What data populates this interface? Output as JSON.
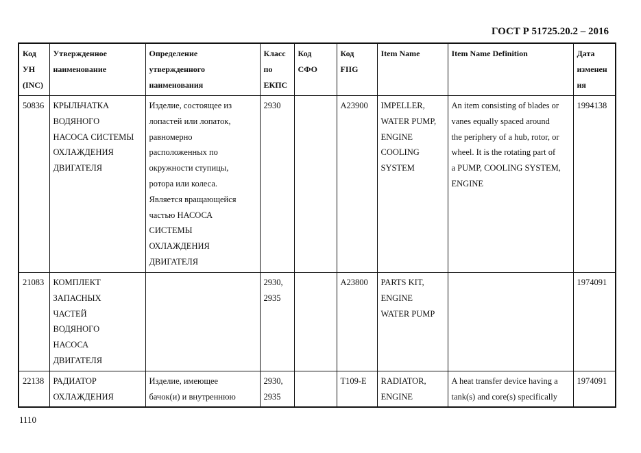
{
  "header": {
    "title": "ГОСТ Р 51725.20.2 – 2016"
  },
  "footer": {
    "page_number": "1110"
  },
  "table": {
    "columns": [
      "Код\nУН\n(INC)",
      "Утвержденное\nнаименование",
      "Определение\nутвержденного\nнаименования",
      "Класс\nпо\nЕКПС",
      "Код\nСФО",
      "Код\nFIIG",
      "Item Name",
      "Item Name Definition",
      "Дата\nизменен\nия"
    ],
    "rows": [
      [
        "50836",
        "КРЫЛЬЧАТКА\nВОДЯНОГО\nНАСОСА СИСТЕМЫ\nОХЛАЖДЕНИЯ\nДВИГАТЕЛЯ",
        "Изделие, состоящее из\nлопастей или лопаток,\nравномерно\nрасположенных по\nокружности ступицы,\nротора или колеса.\nЯвляется вращающейся\nчастью НАСОСА\nСИСТЕМЫ\nОХЛАЖДЕНИЯ\nДВИГАТЕЛЯ",
        "2930",
        "",
        "A23900",
        "IMPELLER,\nWATER PUMP,\nENGINE\nCOOLING\nSYSTEM",
        "An item consisting of blades or\nvanes equally spaced around\nthe periphery of a hub, rotor, or\nwheel.  It is the rotating part of\na PUMP, COOLING SYSTEM,\nENGINE",
        "1994138"
      ],
      [
        "21083",
        "КОМПЛЕКТ\nЗАПАСНЫХ\nЧАСТЕЙ\nВОДЯНОГО\nНАСОСА\nДВИГАТЕЛЯ",
        "",
        "2930,\n2935",
        "",
        "A23800",
        "PARTS KIT,\nENGINE\nWATER PUMP",
        "",
        "1974091"
      ],
      [
        "22138",
        "РАДИАТОР\nОХЛАЖДЕНИЯ",
        "Изделие, имеющее\nбачок(и) и внутреннюю",
        "2930,\n2935",
        "",
        "T109-E",
        "RADIATOR,\nENGINE",
        "A heat transfer device having a\ntank(s) and core(s) specifically",
        "1974091"
      ]
    ]
  }
}
